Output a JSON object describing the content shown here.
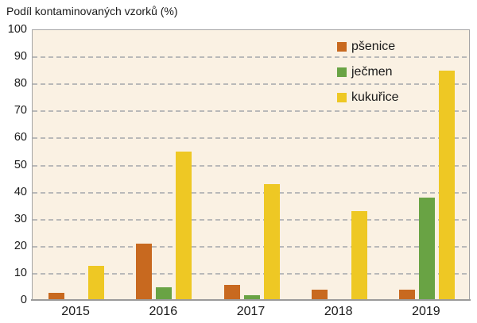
{
  "chart_data": {
    "type": "bar",
    "title": "Podíl kontaminovaných vzorků (%)",
    "categories": [
      "2015",
      "2016",
      "2017",
      "2018",
      "2019"
    ],
    "series": [
      {
        "name": "pšenice",
        "color": "#c8691f",
        "values": [
          3,
          21,
          6,
          4,
          4
        ]
      },
      {
        "name": "ječmen",
        "color": "#69a344",
        "values": [
          0,
          5,
          2,
          0,
          38
        ]
      },
      {
        "name": "kukuřice",
        "color": "#eec824",
        "values": [
          13,
          55,
          43,
          33,
          85
        ]
      }
    ],
    "xlabel": "",
    "ylabel": "",
    "ylim": [
      0,
      100
    ],
    "yticks": [
      0,
      10,
      20,
      30,
      40,
      50,
      60,
      70,
      80,
      90,
      100
    ],
    "grid": "horizontal-dashed",
    "legend_position": "inside-top-right",
    "colors": {
      "plot_background": "#faf1e3",
      "outer_background": "#ffffff",
      "gridline": "#b9b9b9",
      "plot_border": "#a5a5a5",
      "axis_line": "#9b9b9b",
      "text": "#1a1a1a"
    }
  }
}
